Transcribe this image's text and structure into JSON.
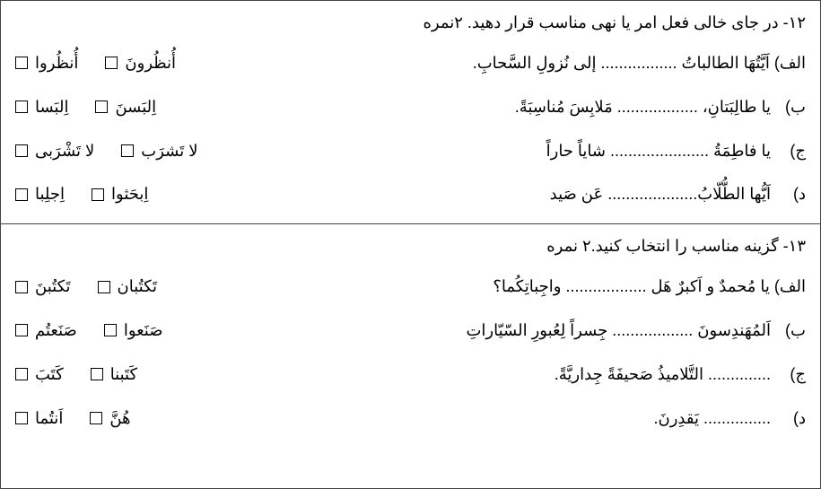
{
  "section12": {
    "header": "۱۲- در جای خالی فعل امر یا نهی مناسب قرار دهید.  ۲نمره",
    "items": [
      {
        "prefix": "الف)",
        "text": "اَیَّتُهَا الطالباتُ ................. إلی نُزولِ السَّحابِ.",
        "options": [
          "أُنظُرونَ",
          "أُنظُروا"
        ]
      },
      {
        "prefix": "ب)",
        "text": "یا طالِبَتانِ، .................. مَلابِسَ مُناسِبَةً.",
        "options": [
          "اِلبَسنَ",
          "اِلبَسا"
        ]
      },
      {
        "prefix": "ج)",
        "text": "یا فاطِمَةُ ...................... شایاً حاراً",
        "options": [
          "لا تَشرَب",
          "لا تَشْرَبی"
        ]
      },
      {
        "prefix": "د)",
        "text": "اَیُّها الطُّلّابُ.................... عَن صَید",
        "options": [
          "اِبحَثوا",
          "اِجلِبا"
        ]
      }
    ]
  },
  "section13": {
    "header": "۱۳- گزینه مناسب را انتخاب کنید.۲ نمره",
    "items": [
      {
        "prefix": "الف)",
        "text": "یا مُحمدٌ و اَکبرٌ هَل .................. واجِباتِکُما؟",
        "options": [
          "تَکتُبان",
          "تَکتُبنَ"
        ]
      },
      {
        "prefix": "ب)",
        "text": "اَلمُهَندِسونَ .................. جِسراً لِعُبورِ السّیّاراتِ",
        "options": [
          "صَنَعوا",
          "صَنَعتُم"
        ]
      },
      {
        "prefix": "ج)",
        "text": "..............   التَّلامیذُ صَحیفَةً جِداریَّةً.",
        "options": [
          "کَتَبنا",
          "کَتَبَ"
        ]
      },
      {
        "prefix": "د)",
        "text": "...............   یَقدِرنَ.",
        "options": [
          "هُنَّ",
          "اَنتُما"
        ]
      }
    ]
  }
}
